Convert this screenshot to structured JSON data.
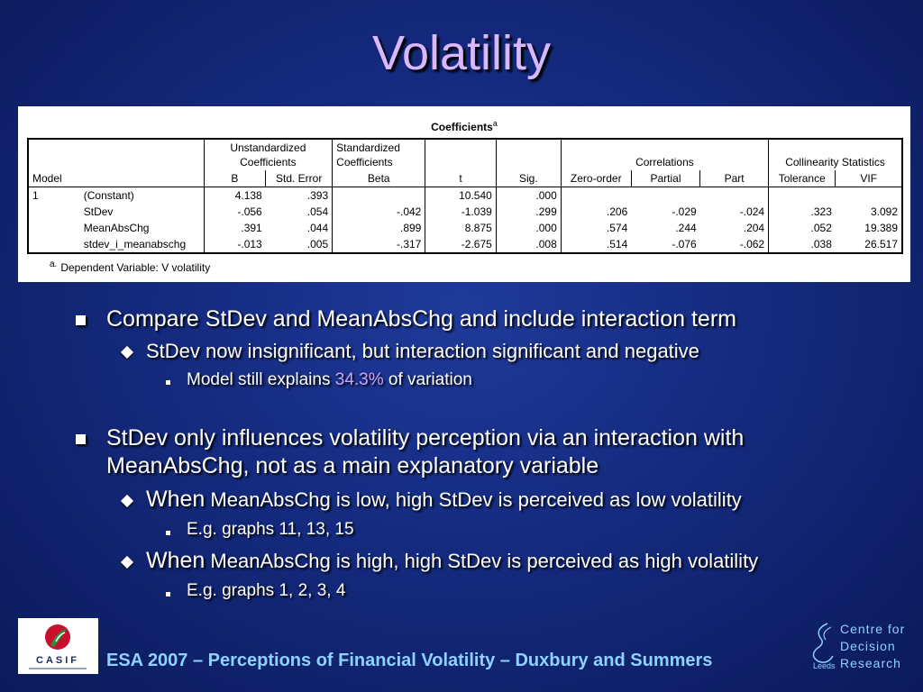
{
  "slide": {
    "title": "Volatility"
  },
  "coefficients_table": {
    "caption": "Coefficients",
    "caption_marker": "a",
    "group_headers": {
      "unstandardized": [
        "Unstandardized",
        "Coefficients"
      ],
      "standardized": [
        "Standardized",
        "Coefficients"
      ],
      "correlations": "Correlations",
      "collinearity": "Collinearity Statistics"
    },
    "columns": [
      "Model",
      "",
      "B",
      "Std. Error",
      "Beta",
      "t",
      "Sig.",
      "Zero-order",
      "Partial",
      "Part",
      "Tolerance",
      "VIF"
    ],
    "rows": [
      {
        "model": "1",
        "name": "(Constant)",
        "b": "4.138",
        "se": ".393",
        "beta": "",
        "t": "10.540",
        "sig": ".000",
        "zero": "",
        "partial": "",
        "part": "",
        "tol": "",
        "vif": ""
      },
      {
        "model": "",
        "name": "StDev",
        "b": "-.056",
        "se": ".054",
        "beta": "-.042",
        "t": "-1.039",
        "sig": ".299",
        "zero": ".206",
        "partial": "-.029",
        "part": "-.024",
        "tol": ".323",
        "vif": "3.092"
      },
      {
        "model": "",
        "name": "MeanAbsChg",
        "b": ".391",
        "se": ".044",
        "beta": ".899",
        "t": "8.875",
        "sig": ".000",
        "zero": ".574",
        "partial": ".244",
        "part": ".204",
        "tol": ".052",
        "vif": "19.389"
      },
      {
        "model": "",
        "name": "stdev_i_meanabschg",
        "b": "-.013",
        "se": ".005",
        "beta": "-.317",
        "t": "-2.675",
        "sig": ".008",
        "zero": ".514",
        "partial": "-.076",
        "part": "-.062",
        "tol": ".038",
        "vif": "26.517"
      }
    ],
    "footnote_marker": "a.",
    "footnote": "Dependent Variable: V volatility"
  },
  "bullets": {
    "p1": "Compare StDev and MeanAbsChg and include interaction term",
    "p1_s1": "StDev now insignificant, but interaction significant and negative",
    "p1_s1_a_pre": "Model still explains ",
    "p1_s1_a_hl": "34.3%",
    "p1_s1_a_post": " of variation",
    "p2_l1": "StDev only influences volatility perception via an interaction with",
    "p2_l2": "MeanAbsChg, not as a main explanatory variable",
    "p2_s1_when": "When",
    "p2_s1": " MeanAbsChg is low, high StDev is perceived as low volatility",
    "p2_s1_a": "E.g. graphs 11, 13, 15",
    "p2_s2_when": "When",
    "p2_s2": " MeanAbsChg is high, high StDev is perceived as high volatility",
    "p2_s2_a": "E.g. graphs 1, 2, 3, 4"
  },
  "footer": {
    "text": "ESA 2007 – Perceptions of Financial Volatility – Duxbury and Summers",
    "logo_text": "CASIF",
    "cdr_lines": [
      "Centre for",
      "Decision",
      "Research"
    ],
    "cdr_leeds": "Leeds"
  },
  "colors": {
    "background": "#142a7e",
    "title": "#d9b8ff",
    "highlight": "#c9a6ff",
    "footer_text": "#8fd2ff",
    "logo_red": "#c8102e",
    "logo_green": "#2e8b3a"
  }
}
